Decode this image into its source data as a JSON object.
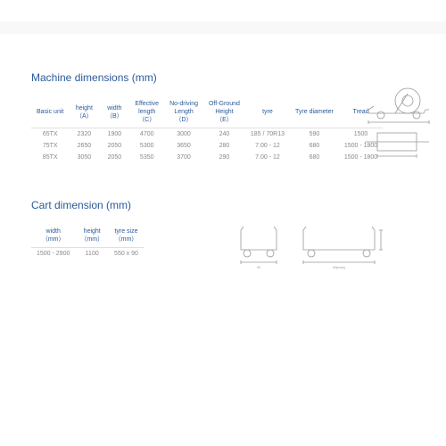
{
  "machine": {
    "title": "Machine dimensions (mm)",
    "columns": [
      "Basic unit",
      "height\n（A）",
      "width\n（B）",
      "Effective\nlength\n（C）",
      "No-driving\nLength\n（D）",
      "Off-Ground\nHeight\n（E）",
      "tyre",
      "Tyre diameter",
      "Tread"
    ],
    "rows": [
      [
        "65TX",
        "2320",
        "1900",
        "4700",
        "3000",
        "240",
        "185 / 70R13",
        "590",
        "1500"
      ],
      [
        "75TX",
        "2650",
        "2050",
        "5300",
        "3650",
        "280",
        "7.00 - 12",
        "680",
        "1500 - 1800"
      ],
      [
        "85TX",
        "3050",
        "2050",
        "5350",
        "3700",
        "290",
        "7.00 - 12",
        "680",
        "1500 - 1800"
      ]
    ]
  },
  "cart": {
    "title": "Cart dimension (mm)",
    "columns": [
      "width\n（mm）",
      "height\n（mm）",
      "tyre size\n（mm）"
    ],
    "rows": [
      [
        "1500 - 2900",
        "1100",
        "550 x 90"
      ]
    ]
  },
  "colors": {
    "heading": "#2a5a9a",
    "body": "#888888",
    "line": "#aaaaaa"
  }
}
